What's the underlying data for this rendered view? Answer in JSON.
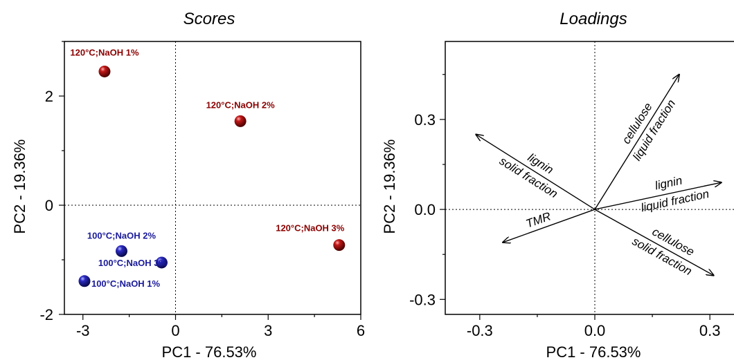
{
  "chart_data": [
    {
      "type": "scatter",
      "title": "Scores",
      "xlabel": "PC1 - 76.53%",
      "ylabel": "PC2 - 19.36%",
      "xlim": [
        -3.6,
        6
      ],
      "ylim": [
        -2,
        3
      ],
      "xticks": [
        -3,
        0,
        3,
        6
      ],
      "yticks": [
        -2,
        0,
        2
      ],
      "zero_lines": true,
      "colors": {
        "120C": "#8b0000",
        "100C": "#1a1a99"
      },
      "points": [
        {
          "label": "120°C;NaOH 1%",
          "x": -2.3,
          "y": 2.45,
          "group": "120C"
        },
        {
          "label": "120°C;NaOH 2%",
          "x": 2.1,
          "y": 1.54,
          "group": "120C"
        },
        {
          "label": "120°C;NaOH 3%",
          "x": 5.3,
          "y": -0.73,
          "group": "120C"
        },
        {
          "label": "100°C;NaOH 2%",
          "x": -1.75,
          "y": -0.84,
          "group": "100C"
        },
        {
          "label": "100°C;NaOH 3%",
          "x": -0.45,
          "y": -1.05,
          "group": "100C"
        },
        {
          "label": "100°C;NaOH 1%",
          "x": -2.95,
          "y": -1.39,
          "group": "100C"
        }
      ]
    },
    {
      "type": "biplot",
      "title": "Loadings",
      "xlabel": "PC1 - 76.53%",
      "ylabel": "PC2 - 19.36%",
      "xlim": [
        -0.39,
        0.39
      ],
      "ylim": [
        -0.35,
        0.56
      ],
      "xticks": [
        -0.3,
        0.0,
        0.3
      ],
      "yticks": [
        -0.3,
        0.0,
        0.3
      ],
      "tick_labels": [
        "-0.3",
        "0.0",
        "0.3"
      ],
      "zero_lines": true,
      "vectors": [
        {
          "name": "cellulose liquid fraction",
          "lines": [
            "cellulose",
            "liquid fraction"
          ],
          "x": 0.22,
          "y": 0.45
        },
        {
          "name": "lignin liquid fraction",
          "lines": [
            "lignin",
            "liquid fraction"
          ],
          "x": 0.33,
          "y": 0.09
        },
        {
          "name": "cellulose solid fraction",
          "lines": [
            "cellulose",
            "solid fraction"
          ],
          "x": 0.31,
          "y": -0.22
        },
        {
          "name": "lignin solid fraction",
          "lines": [
            "lignin",
            "solid fraction"
          ],
          "x": -0.31,
          "y": 0.25
        },
        {
          "name": "TMR",
          "lines": [
            "TMR"
          ],
          "x": -0.24,
          "y": -0.11
        }
      ]
    }
  ]
}
